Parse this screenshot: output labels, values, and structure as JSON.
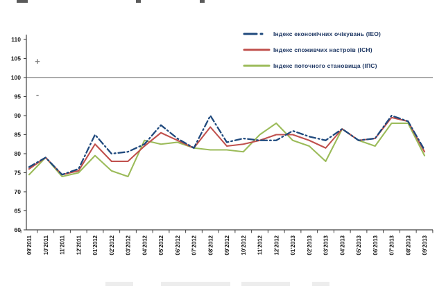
{
  "chart_data": {
    "type": "line",
    "title": "",
    "xlabel": "",
    "ylabel": "",
    "categories": [
      "09'2011",
      "10'2011",
      "11'2011",
      "12'2011",
      "01'2012",
      "02'2012",
      "03'2012",
      "04'2012",
      "05'2012",
      "06'2012",
      "07'2012",
      "08'2012",
      "09'2012",
      "10'2012",
      "11'2012",
      "12'2012",
      "01'2013",
      "02'2013",
      "03'2013",
      "04'2013",
      "05'2013",
      "06'2013",
      "07'2013",
      "08'2013",
      "09'2013"
    ],
    "series": [
      {
        "id": "ieo",
        "name": "Індекс економічних  очікувань  (ІЕО)",
        "color": "#1F497D",
        "line_style": "dash-dot",
        "values": [
          76.5,
          79,
          74.5,
          76,
          85,
          80,
          80.5,
          82.5,
          87.5,
          84,
          81.5,
          90,
          83,
          84,
          83.5,
          83.5,
          86,
          84.5,
          83.5,
          86.5,
          83.5,
          84,
          90,
          88.5,
          81
        ]
      },
      {
        "id": "ich",
        "name": "Індекс споживчих  настроїв  (ІСН)",
        "color": "#C0504D",
        "line_style": "solid",
        "values": [
          76,
          79,
          74.5,
          75.5,
          82.5,
          78,
          78,
          82,
          85.5,
          83.5,
          81.5,
          87,
          82,
          82.5,
          83.5,
          85,
          85,
          83.5,
          81.5,
          86.5,
          83.5,
          84,
          89.5,
          88.5,
          80.5
        ]
      },
      {
        "id": "ips",
        "name": "Індекс поточного  становища  (ІПС)",
        "color": "#9BBB59",
        "line_style": "solid",
        "values": [
          74.5,
          79,
          74,
          75,
          79.5,
          75.5,
          74,
          83.5,
          82.5,
          83,
          81.5,
          81,
          81,
          80.5,
          85,
          88,
          83.5,
          82,
          78,
          86.5,
          83.5,
          82,
          88,
          88,
          79.5
        ]
      }
    ],
    "ylim": [
      60,
      110
    ],
    "yticks": [
      60,
      65,
      70,
      75,
      80,
      85,
      90,
      95,
      100,
      105,
      110
    ],
    "grid": false,
    "legend_position": "top-right",
    "reference_line": {
      "value": 100,
      "above_label": "+",
      "below_label": "-",
      "color": "#595959",
      "sign_color": "#808080"
    },
    "axis_color": "#404040",
    "tick_label_color": "#1a1a1a"
  }
}
